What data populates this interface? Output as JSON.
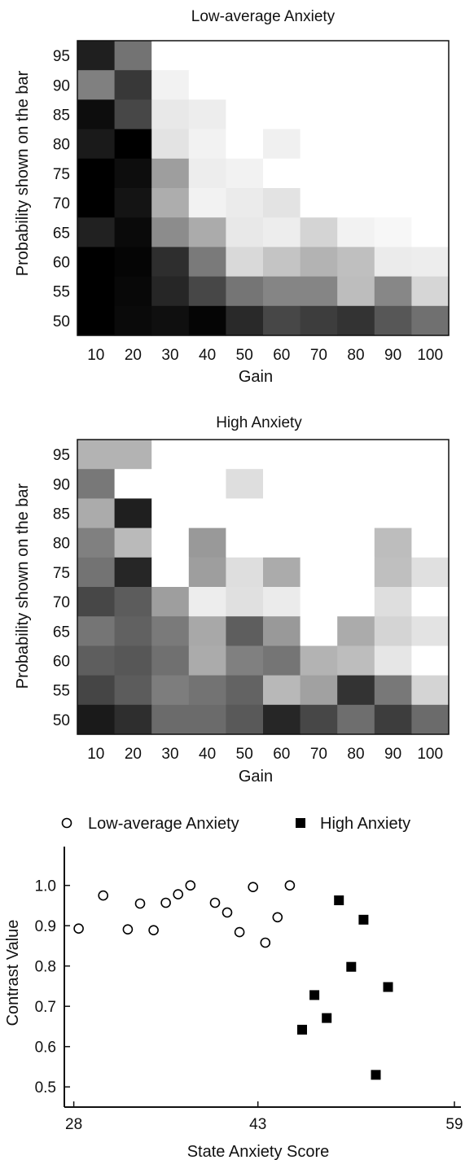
{
  "chart_data": [
    {
      "type": "heatmap",
      "title": "Low-average Anxiety",
      "xlabel": "Gain",
      "ylabel": "Probability shown on the bar",
      "x_categories": [
        "10",
        "20",
        "30",
        "40",
        "50",
        "60",
        "70",
        "80",
        "90",
        "100"
      ],
      "y_categories": [
        "95",
        "90",
        "85",
        "80",
        "75",
        "70",
        "65",
        "60",
        "55",
        "50"
      ],
      "value_range": [
        0,
        1
      ],
      "colormap": "grayscale: 0 = black, 1 = white",
      "grid": false,
      "values": [
        [
          0.12,
          0.45,
          1.0,
          1.0,
          1.0,
          1.0,
          1.0,
          1.0,
          1.0,
          1.0
        ],
        [
          0.5,
          0.22,
          0.95,
          1.0,
          1.0,
          1.0,
          1.0,
          1.0,
          1.0,
          1.0
        ],
        [
          0.05,
          0.28,
          0.91,
          0.93,
          1.0,
          1.0,
          1.0,
          1.0,
          1.0,
          1.0
        ],
        [
          0.1,
          0.0,
          0.89,
          0.95,
          1.0,
          0.94,
          1.0,
          1.0,
          1.0,
          1.0
        ],
        [
          0.0,
          0.05,
          0.62,
          0.93,
          0.95,
          1.0,
          1.0,
          1.0,
          1.0,
          1.0
        ],
        [
          0.0,
          0.08,
          0.68,
          0.95,
          0.92,
          0.89,
          1.0,
          1.0,
          1.0,
          1.0
        ],
        [
          0.13,
          0.04,
          0.55,
          0.67,
          0.91,
          0.93,
          0.83,
          0.95,
          0.97,
          1.0
        ],
        [
          0.0,
          0.02,
          0.18,
          0.48,
          0.85,
          0.77,
          0.7,
          0.75,
          0.92,
          0.93
        ],
        [
          0.0,
          0.03,
          0.15,
          0.28,
          0.46,
          0.52,
          0.52,
          0.74,
          0.53,
          0.84
        ],
        [
          0.0,
          0.04,
          0.06,
          0.02,
          0.16,
          0.28,
          0.24,
          0.2,
          0.34,
          0.44
        ]
      ]
    },
    {
      "type": "heatmap",
      "title": "High Anxiety",
      "xlabel": "Gain",
      "ylabel": "Probability shown on the bar",
      "x_categories": [
        "10",
        "20",
        "30",
        "40",
        "50",
        "60",
        "70",
        "80",
        "90",
        "100"
      ],
      "y_categories": [
        "95",
        "90",
        "85",
        "80",
        "75",
        "70",
        "65",
        "60",
        "55",
        "50"
      ],
      "value_range": [
        0,
        1
      ],
      "colormap": "grayscale: 0 = black, 1 = white",
      "grid": false,
      "values": [
        [
          0.7,
          0.7,
          1.0,
          1.0,
          1.0,
          1.0,
          1.0,
          1.0,
          1.0,
          1.0
        ],
        [
          0.47,
          1.0,
          1.0,
          1.0,
          0.87,
          1.0,
          1.0,
          1.0,
          1.0,
          1.0
        ],
        [
          0.67,
          0.12,
          1.0,
          1.0,
          1.0,
          1.0,
          1.0,
          1.0,
          1.0,
          1.0
        ],
        [
          0.5,
          0.73,
          1.0,
          0.6,
          1.0,
          1.0,
          1.0,
          1.0,
          0.74,
          1.0
        ],
        [
          0.45,
          0.15,
          1.0,
          0.62,
          0.87,
          0.67,
          1.0,
          1.0,
          0.75,
          0.88
        ],
        [
          0.28,
          0.36,
          0.62,
          0.93,
          0.88,
          0.92,
          1.0,
          1.0,
          0.87,
          1.0
        ],
        [
          0.46,
          0.38,
          0.48,
          0.66,
          0.37,
          0.6,
          1.0,
          0.67,
          0.83,
          0.89
        ],
        [
          0.37,
          0.34,
          0.44,
          0.67,
          0.5,
          0.46,
          0.7,
          0.74,
          0.9,
          1.0
        ],
        [
          0.27,
          0.36,
          0.49,
          0.45,
          0.39,
          0.72,
          0.63,
          0.2,
          0.47,
          0.83
        ],
        [
          0.1,
          0.18,
          0.42,
          0.42,
          0.35,
          0.15,
          0.28,
          0.43,
          0.24,
          0.42
        ]
      ]
    },
    {
      "type": "scatter",
      "title": "",
      "xlabel": "State Anxiety Score",
      "ylabel": "Contrast Value",
      "x_ticks": [
        "28",
        "43",
        "59"
      ],
      "x_tick_values": [
        28,
        43,
        59
      ],
      "y_ticks": [
        "0.5",
        "0.6",
        "0.7",
        "0.8",
        "0.9",
        "1.0"
      ],
      "xlim": [
        27.3,
        59.4
      ],
      "ylim": [
        0.45,
        1.06
      ],
      "grid": false,
      "legend_position": "top",
      "series": [
        {
          "name": "Low-average Anxiety",
          "marker": "open-circle",
          "color": "#000000",
          "points": [
            [
              28.4,
              0.893
            ],
            [
              30.4,
              0.975
            ],
            [
              32.4,
              0.891
            ],
            [
              33.4,
              0.955
            ],
            [
              34.5,
              0.889
            ],
            [
              35.5,
              0.957
            ],
            [
              36.5,
              0.978
            ],
            [
              37.5,
              1.0
            ],
            [
              39.5,
              0.957
            ],
            [
              40.5,
              0.933
            ],
            [
              41.5,
              0.884
            ],
            [
              42.6,
              0.996
            ],
            [
              43.6,
              0.858
            ],
            [
              44.6,
              0.921
            ],
            [
              45.6,
              1.0
            ]
          ]
        },
        {
          "name": "High Anxiety",
          "marker": "filled-square",
          "color": "#000000",
          "points": [
            [
              46.6,
              0.642
            ],
            [
              47.6,
              0.728
            ],
            [
              48.6,
              0.671
            ],
            [
              49.6,
              0.963
            ],
            [
              50.6,
              0.798
            ],
            [
              51.6,
              0.915
            ],
            [
              52.6,
              0.53
            ],
            [
              53.6,
              0.748
            ]
          ]
        }
      ]
    }
  ]
}
